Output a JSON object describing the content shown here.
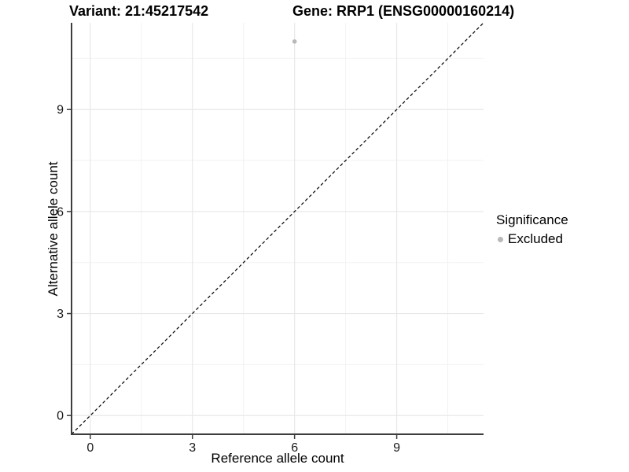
{
  "chart_data": {
    "type": "scatter",
    "titles": {
      "left": "Variant: 21:45217542",
      "right": "Gene: RRP1 (ENSG00000160214)"
    },
    "xlabel": "Reference allele count",
    "ylabel": "Alternative allele count",
    "xlim": [
      -0.55,
      11.55
    ],
    "ylim": [
      -0.55,
      11.55
    ],
    "x_major_ticks": [
      0,
      3,
      6,
      9
    ],
    "y_major_ticks": [
      0,
      3,
      6,
      9
    ],
    "x_minor_ticks": [
      1.5,
      4.5,
      7.5,
      10.5
    ],
    "y_minor_ticks": [
      1.5,
      4.5,
      7.5,
      10.5
    ],
    "grid": true,
    "identity_line": {
      "equation": "y = x",
      "style": "dashed",
      "color": "#000000"
    },
    "series": [
      {
        "name": "Excluded",
        "color": "#b8b8b8",
        "points": [
          {
            "x": 6,
            "y": 11
          }
        ]
      }
    ],
    "legend": {
      "title": "Significance",
      "position": "right-middle",
      "entries": [
        {
          "label": "Excluded",
          "color": "#b8b8b8"
        }
      ]
    },
    "colors": {
      "background": "#ffffff",
      "grid_major": "#e8e8e8",
      "grid_minor": "#f2f2f2",
      "axis_line": "#3d3d3d",
      "tick_text": "#1a1a1a"
    },
    "point_radius_px": 2.8
  }
}
